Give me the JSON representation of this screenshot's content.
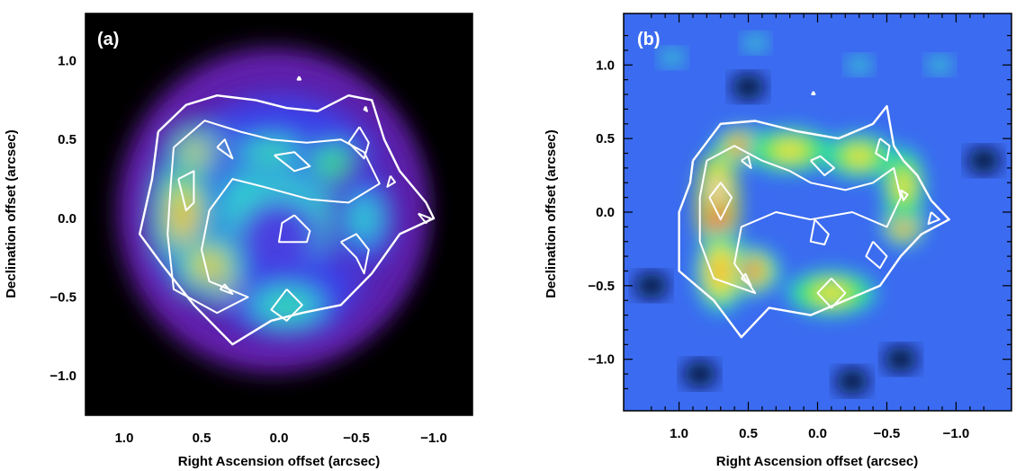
{
  "chart_data": [
    {
      "type": "heatmap",
      "panel_label": "(a)",
      "xlabel": "Right Ascension offset (arcsec)",
      "ylabel": "Declination offset (arcsec)",
      "xlim": [
        1.25,
        -1.25
      ],
      "ylim": [
        -1.25,
        1.3
      ],
      "xticks": [
        1.0,
        0.5,
        0.0,
        -0.5,
        -1.0
      ],
      "xtick_labels": [
        "1.0",
        "0.5",
        "0.0",
        "−0.5",
        "−1.0"
      ],
      "yticks": [
        1.0,
        0.5,
        0.0,
        -0.5,
        -1.0
      ],
      "ytick_labels": [
        "1.0",
        "0.5",
        "0.0",
        "−0.5",
        "−1.0"
      ],
      "background_color": "#000000",
      "colormap": [
        "#000000",
        "#5a1fa6",
        "#3a40e8",
        "#2fd0d0",
        "#3ae45a",
        "#f3e23c",
        "#f06a28",
        "#e43a2a",
        "#ffffff"
      ],
      "emission_components": [
        {
          "x": 0.0,
          "y": 0.05,
          "sx": 0.72,
          "sy": 0.7,
          "level": 0.2
        },
        {
          "x": 0.62,
          "y": 0.02,
          "sx": 0.16,
          "sy": 0.36,
          "level": 0.55
        },
        {
          "x": 0.52,
          "y": 0.42,
          "sx": 0.16,
          "sy": 0.13,
          "level": 0.55
        },
        {
          "x": 0.38,
          "y": 0.45,
          "sx": 0.1,
          "sy": 0.08,
          "level": 0.5
        },
        {
          "x": 0.45,
          "y": -0.3,
          "sx": 0.2,
          "sy": 0.16,
          "level": 0.55
        },
        {
          "x": 0.33,
          "y": -0.45,
          "sx": 0.1,
          "sy": 0.07,
          "level": 0.5
        },
        {
          "x": 0.05,
          "y": 0.42,
          "sx": 0.28,
          "sy": 0.12,
          "level": 0.3
        },
        {
          "x": -0.35,
          "y": 0.35,
          "sx": 0.18,
          "sy": 0.15,
          "level": 0.35
        },
        {
          "x": -0.55,
          "y": 0.0,
          "sx": 0.18,
          "sy": 0.3,
          "level": 0.25
        },
        {
          "x": -0.05,
          "y": -0.55,
          "sx": 0.3,
          "sy": 0.15,
          "level": 0.28
        },
        {
          "x": 0.0,
          "y": -0.1,
          "sx": 0.2,
          "sy": 0.17,
          "level": -0.35
        }
      ],
      "contours": [
        [
          [
            0.78,
            0.55
          ],
          [
            0.6,
            0.72
          ],
          [
            0.4,
            0.78
          ],
          [
            0.15,
            0.75
          ],
          [
            -0.05,
            0.7
          ],
          [
            -0.25,
            0.68
          ],
          [
            -0.45,
            0.78
          ],
          [
            -0.6,
            0.75
          ],
          [
            -0.68,
            0.5
          ],
          [
            -0.78,
            0.3
          ],
          [
            -0.95,
            0.1
          ],
          [
            -1.0,
            0.0
          ],
          [
            -0.78,
            -0.1
          ],
          [
            -0.6,
            -0.35
          ],
          [
            -0.4,
            -0.55
          ],
          [
            -0.15,
            -0.6
          ],
          [
            0.05,
            -0.65
          ],
          [
            0.3,
            -0.8
          ],
          [
            0.55,
            -0.55
          ],
          [
            0.75,
            -0.3
          ],
          [
            0.9,
            -0.1
          ],
          [
            0.82,
            0.25
          ],
          [
            0.78,
            0.55
          ]
        ],
        [
          [
            0.68,
            0.45
          ],
          [
            0.48,
            0.62
          ],
          [
            0.25,
            0.55
          ],
          [
            0.05,
            0.5
          ],
          [
            -0.18,
            0.48
          ],
          [
            -0.4,
            0.5
          ],
          [
            -0.55,
            0.42
          ],
          [
            -0.65,
            0.22
          ],
          [
            -0.45,
            0.1
          ],
          [
            -0.2,
            0.12
          ],
          [
            0.1,
            0.2
          ],
          [
            0.3,
            0.25
          ],
          [
            0.45,
            0.05
          ],
          [
            0.5,
            -0.2
          ],
          [
            0.45,
            -0.4
          ],
          [
            0.2,
            -0.5
          ],
          [
            0.4,
            -0.6
          ],
          [
            0.68,
            -0.45
          ],
          [
            0.72,
            -0.1
          ],
          [
            0.7,
            0.2
          ],
          [
            0.68,
            0.45
          ]
        ],
        [
          [
            0.65,
            0.25
          ],
          [
            0.55,
            0.3
          ],
          [
            0.55,
            0.1
          ],
          [
            0.6,
            0.05
          ],
          [
            0.65,
            0.25
          ]
        ],
        [
          [
            0.4,
            0.45
          ],
          [
            0.3,
            0.38
          ],
          [
            0.35,
            0.5
          ],
          [
            0.4,
            0.45
          ]
        ],
        [
          [
            0.03,
            0.4
          ],
          [
            -0.1,
            0.3
          ],
          [
            -0.2,
            0.33
          ],
          [
            -0.1,
            0.42
          ],
          [
            0.03,
            0.4
          ]
        ],
        [
          [
            -0.52,
            0.58
          ],
          [
            -0.45,
            0.48
          ],
          [
            -0.55,
            0.38
          ],
          [
            -0.58,
            0.48
          ],
          [
            -0.52,
            0.58
          ]
        ],
        [
          [
            -0.1,
            0.02
          ],
          [
            -0.2,
            -0.08
          ],
          [
            -0.18,
            -0.15
          ],
          [
            0.0,
            -0.15
          ],
          [
            -0.02,
            -0.03
          ],
          [
            -0.1,
            0.02
          ]
        ],
        [
          [
            -0.4,
            -0.15
          ],
          [
            -0.5,
            -0.25
          ],
          [
            -0.55,
            -0.35
          ],
          [
            -0.58,
            -0.2
          ],
          [
            -0.5,
            -0.1
          ],
          [
            -0.4,
            -0.15
          ]
        ],
        [
          [
            -0.9,
            0.03
          ],
          [
            -0.98,
            0.0
          ],
          [
            -0.95,
            -0.03
          ],
          [
            -0.9,
            0.03
          ]
        ],
        [
          [
            -0.72,
            0.27
          ],
          [
            -0.75,
            0.23
          ],
          [
            -0.7,
            0.2
          ],
          [
            -0.72,
            0.27
          ]
        ],
        [
          [
            0.38,
            -0.45
          ],
          [
            0.3,
            -0.48
          ],
          [
            0.35,
            -0.42
          ],
          [
            0.38,
            -0.45
          ]
        ],
        [
          [
            -0.05,
            -0.45
          ],
          [
            -0.15,
            -0.55
          ],
          [
            -0.05,
            -0.65
          ],
          [
            0.05,
            -0.58
          ],
          [
            -0.05,
            -0.45
          ]
        ],
        [
          [
            -0.56,
            0.71
          ],
          [
            -0.57,
            0.68
          ],
          [
            -0.55,
            0.69
          ],
          [
            -0.56,
            0.71
          ]
        ],
        [
          [
            -0.13,
            0.9
          ],
          [
            -0.14,
            0.88
          ],
          [
            -0.12,
            0.88
          ],
          [
            -0.13,
            0.9
          ]
        ]
      ]
    },
    {
      "type": "heatmap",
      "panel_label": "(b)",
      "xlabel": "Right Ascension offset (arcsec)",
      "ylabel": "Declination offset (arcsec)",
      "xlim": [
        1.4,
        -1.4
      ],
      "ylim": [
        -1.35,
        1.35
      ],
      "xticks": [
        1.0,
        0.5,
        0.0,
        -0.5,
        -1.0
      ],
      "xtick_labels": [
        "1.0",
        "0.5",
        "0.0",
        "−0.5",
        "−1.0"
      ],
      "yticks": [
        1.0,
        0.5,
        0.0,
        -0.5,
        -1.0
      ],
      "ytick_labels": [
        "1.0",
        "0.5",
        "0.0",
        "−0.5",
        "−1.0"
      ],
      "background_color": "#3b6bf0",
      "colormap": [
        "#000000",
        "#1a3aa8",
        "#3b6bf0",
        "#2fd0d0",
        "#3ae45a",
        "#f3e23c",
        "#f06a28",
        "#e43a2a",
        "#ffffff"
      ],
      "emission_components": [
        {
          "x": 0.72,
          "y": 0.05,
          "sx": 0.12,
          "sy": 0.3,
          "level": 0.55
        },
        {
          "x": 0.72,
          "y": 0.15,
          "sx": 0.06,
          "sy": 0.12,
          "level": 0.65
        },
        {
          "x": 0.55,
          "y": 0.45,
          "sx": 0.15,
          "sy": 0.1,
          "level": 0.4
        },
        {
          "x": 0.5,
          "y": -0.4,
          "sx": 0.18,
          "sy": 0.13,
          "level": 0.45
        },
        {
          "x": 0.2,
          "y": 0.42,
          "sx": 0.25,
          "sy": 0.12,
          "level": 0.3
        },
        {
          "x": -0.3,
          "y": 0.38,
          "sx": 0.2,
          "sy": 0.12,
          "level": 0.3
        },
        {
          "x": -0.62,
          "y": -0.08,
          "sx": 0.12,
          "sy": 0.12,
          "level": 0.5
        },
        {
          "x": -0.62,
          "y": 0.18,
          "sx": 0.12,
          "sy": 0.2,
          "level": 0.3
        },
        {
          "x": -0.1,
          "y": -0.55,
          "sx": 0.25,
          "sy": 0.12,
          "level": 0.28
        },
        {
          "x": 0.7,
          "y": -0.4,
          "sx": 0.14,
          "sy": 0.22,
          "level": 0.35
        }
      ],
      "contours": [
        [
          [
            0.9,
            0.35
          ],
          [
            0.7,
            0.6
          ],
          [
            0.45,
            0.62
          ],
          [
            0.15,
            0.55
          ],
          [
            -0.15,
            0.5
          ],
          [
            -0.4,
            0.6
          ],
          [
            -0.5,
            0.72
          ],
          [
            -0.55,
            0.45
          ],
          [
            -0.62,
            0.35
          ],
          [
            -0.72,
            0.25
          ],
          [
            -0.82,
            0.08
          ],
          [
            -0.95,
            -0.05
          ],
          [
            -0.75,
            -0.15
          ],
          [
            -0.6,
            -0.3
          ],
          [
            -0.45,
            -0.5
          ],
          [
            -0.2,
            -0.6
          ],
          [
            0.05,
            -0.7
          ],
          [
            0.35,
            -0.65
          ],
          [
            0.55,
            -0.85
          ],
          [
            0.75,
            -0.6
          ],
          [
            1.0,
            -0.4
          ],
          [
            1.0,
            0.0
          ],
          [
            0.92,
            0.2
          ],
          [
            0.9,
            0.35
          ]
        ],
        [
          [
            0.8,
            0.35
          ],
          [
            0.6,
            0.45
          ],
          [
            0.4,
            0.35
          ],
          [
            0.2,
            0.28
          ],
          [
            0.05,
            0.2
          ],
          [
            -0.2,
            0.15
          ],
          [
            -0.4,
            0.2
          ],
          [
            -0.55,
            0.3
          ],
          [
            -0.6,
            0.1
          ],
          [
            -0.5,
            -0.1
          ],
          [
            -0.25,
            0.0
          ],
          [
            0.05,
            -0.05
          ],
          [
            0.3,
            0.0
          ],
          [
            0.55,
            -0.1
          ],
          [
            0.6,
            -0.35
          ],
          [
            0.45,
            -0.55
          ],
          [
            0.75,
            -0.45
          ],
          [
            0.85,
            -0.2
          ],
          [
            0.85,
            0.1
          ],
          [
            0.8,
            0.35
          ]
        ],
        [
          [
            0.78,
            0.1
          ],
          [
            0.7,
            0.2
          ],
          [
            0.62,
            0.1
          ],
          [
            0.7,
            -0.05
          ],
          [
            0.78,
            0.1
          ]
        ],
        [
          [
            0.55,
            0.35
          ],
          [
            0.48,
            0.3
          ],
          [
            0.5,
            0.38
          ],
          [
            0.55,
            0.35
          ]
        ],
        [
          [
            0.05,
            0.35
          ],
          [
            -0.05,
            0.25
          ],
          [
            -0.12,
            0.3
          ],
          [
            -0.02,
            0.38
          ],
          [
            0.05,
            0.35
          ]
        ],
        [
          [
            -0.45,
            0.5
          ],
          [
            -0.42,
            0.4
          ],
          [
            -0.5,
            0.35
          ],
          [
            -0.52,
            0.45
          ],
          [
            -0.45,
            0.5
          ]
        ],
        [
          [
            0.02,
            -0.05
          ],
          [
            -0.08,
            -0.15
          ],
          [
            -0.05,
            -0.22
          ],
          [
            0.05,
            -0.2
          ],
          [
            0.02,
            -0.05
          ]
        ],
        [
          [
            -0.4,
            -0.2
          ],
          [
            -0.5,
            -0.3
          ],
          [
            -0.45,
            -0.38
          ],
          [
            -0.35,
            -0.3
          ],
          [
            -0.4,
            -0.2
          ]
        ],
        [
          [
            -0.82,
            0.0
          ],
          [
            -0.88,
            -0.05
          ],
          [
            -0.8,
            -0.08
          ],
          [
            -0.82,
            0.0
          ]
        ],
        [
          [
            -0.6,
            0.15
          ],
          [
            -0.65,
            0.12
          ],
          [
            -0.62,
            0.08
          ],
          [
            -0.6,
            0.15
          ]
        ],
        [
          [
            0.55,
            -0.45
          ],
          [
            0.48,
            -0.5
          ],
          [
            0.52,
            -0.42
          ],
          [
            0.55,
            -0.45
          ]
        ],
        [
          [
            -0.1,
            -0.45
          ],
          [
            -0.2,
            -0.55
          ],
          [
            -0.1,
            -0.65
          ],
          [
            0.0,
            -0.55
          ],
          [
            -0.1,
            -0.45
          ]
        ],
        [
          [
            0.03,
            0.82
          ],
          [
            0.02,
            0.8
          ],
          [
            0.04,
            0.8
          ],
          [
            0.03,
            0.82
          ]
        ]
      ]
    }
  ]
}
